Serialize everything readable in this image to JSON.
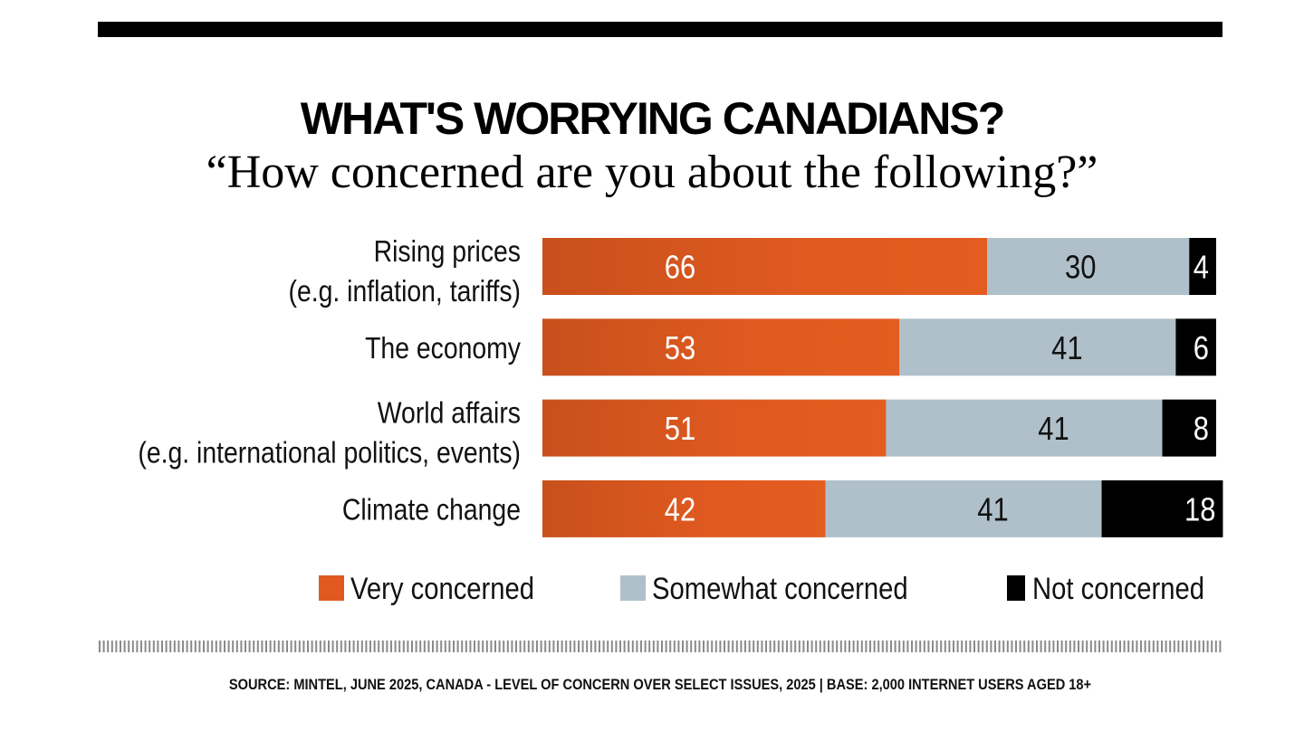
{
  "chart_data": {
    "type": "bar",
    "orientation": "horizontal",
    "stacked": true,
    "title": "WHAT'S WORRYING CANADIANS?",
    "subtitle": "“How concerned are you about the following?”",
    "categories": [
      [
        "Rising prices",
        "(e.g. inflation, tariffs)"
      ],
      [
        "The economy"
      ],
      [
        "World affairs",
        "(e.g. international politics, events)"
      ],
      [
        "Climate change"
      ]
    ],
    "series": [
      {
        "name": "Very concerned",
        "values": [
          66,
          53,
          51,
          42
        ],
        "color": "#e05a20",
        "label_color": "#ffffff"
      },
      {
        "name": "Somewhat concerned",
        "values": [
          30,
          41,
          41,
          41
        ],
        "color": "#afc0ca",
        "label_color": "#111111"
      },
      {
        "name": "Not concerned",
        "values": [
          4,
          6,
          8,
          18
        ],
        "color": "#000000",
        "label_color": "#ffffff"
      }
    ],
    "unit": "%",
    "legend": "bottom",
    "grid": false,
    "source": "SOURCE: MINTEL, JUNE 2025,  CANADA - LEVEL OF CONCERN OVER SELECT ISSUES, 2025  |  BASE: 2,000 INTERNET USERS AGED 18+"
  }
}
